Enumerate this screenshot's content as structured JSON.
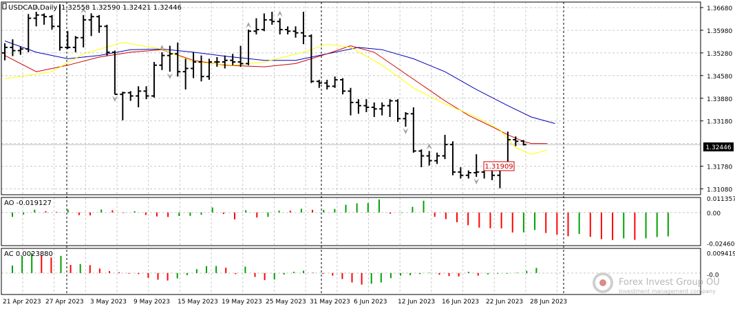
{
  "header": {
    "symbol": "USDCAD,Daily",
    "ohlc": "1.32558 1.32590 1.32421 1.32446"
  },
  "price_labels": {
    "current": "1.32446",
    "annotation": "1.31909"
  },
  "indicators": {
    "ao_label": "AO -0.019127",
    "ac_label": "AC 0.0023880"
  },
  "branding": {
    "name": "Forex Invest Group OU",
    "tagline": "Investment management company"
  },
  "colors": {
    "up": "#00a000",
    "down": "#ff0000",
    "fast_ma": "#ffff00",
    "mid_ma": "#cc0000",
    "slow_ma": "#0000bb",
    "bars": "#000000",
    "fractal": "#a0a0a0"
  },
  "chart_data": [
    {
      "type": "ohlc",
      "title": "USDCAD,Daily",
      "ylim": [
        1.309,
        1.3685
      ],
      "y_ticks": [
        "1.36680",
        "1.35980",
        "1.35280",
        "1.34580",
        "1.33880",
        "1.33180",
        "1.32446",
        "1.31780",
        "1.31080"
      ],
      "x_ticks": [
        "21 Apr 2023",
        "27 Apr 2023",
        "3 May 2023",
        "9 May 2023",
        "15 May 2023",
        "19 May 2023",
        "25 May 2023",
        "31 May 2023",
        "6 Jun 2023",
        "12 Jun 2023",
        "16 Jun 2023",
        "22 Jun 2023",
        "28 Jun 2023"
      ],
      "grid": true,
      "bars": [
        {
          "o": 1.3528,
          "h": 1.3558,
          "l": 1.3505,
          "c": 1.3545
        },
        {
          "o": 1.3545,
          "h": 1.357,
          "l": 1.3518,
          "c": 1.3535
        },
        {
          "o": 1.3535,
          "h": 1.3548,
          "l": 1.3522,
          "c": 1.354
        },
        {
          "o": 1.354,
          "h": 1.3648,
          "l": 1.353,
          "c": 1.3635
        },
        {
          "o": 1.3635,
          "h": 1.3655,
          "l": 1.361,
          "c": 1.3645
        },
        {
          "o": 1.3645,
          "h": 1.365,
          "l": 1.3615,
          "c": 1.364
        },
        {
          "o": 1.364,
          "h": 1.3645,
          "l": 1.36,
          "c": 1.361
        },
        {
          "o": 1.361,
          "h": 1.3678,
          "l": 1.3535,
          "c": 1.3545
        },
        {
          "o": 1.3545,
          "h": 1.3595,
          "l": 1.354,
          "c": 1.3545
        },
        {
          "o": 1.3545,
          "h": 1.358,
          "l": 1.353,
          "c": 1.3575
        },
        {
          "o": 1.3575,
          "h": 1.3645,
          "l": 1.3545,
          "c": 1.363
        },
        {
          "o": 1.363,
          "h": 1.365,
          "l": 1.358,
          "c": 1.364
        },
        {
          "o": 1.364,
          "h": 1.3645,
          "l": 1.359,
          "c": 1.361
        },
        {
          "o": 1.361,
          "h": 1.3615,
          "l": 1.352,
          "c": 1.353
        },
        {
          "o": 1.353,
          "h": 1.3535,
          "l": 1.34,
          "c": 1.34
        },
        {
          "o": 1.34,
          "h": 1.3408,
          "l": 1.332,
          "c": 1.3405
        },
        {
          "o": 1.3405,
          "h": 1.341,
          "l": 1.338,
          "c": 1.3395
        },
        {
          "o": 1.3395,
          "h": 1.3425,
          "l": 1.336,
          "c": 1.341
        },
        {
          "o": 1.341,
          "h": 1.3425,
          "l": 1.3385,
          "c": 1.3395
        },
        {
          "o": 1.3395,
          "h": 1.35,
          "l": 1.339,
          "c": 1.349
        },
        {
          "o": 1.349,
          "h": 1.353,
          "l": 1.3475,
          "c": 1.352
        },
        {
          "o": 1.352,
          "h": 1.355,
          "l": 1.347,
          "c": 1.3525
        },
        {
          "o": 1.3525,
          "h": 1.356,
          "l": 1.3455,
          "c": 1.347
        },
        {
          "o": 1.347,
          "h": 1.351,
          "l": 1.3415,
          "c": 1.348
        },
        {
          "o": 1.348,
          "h": 1.353,
          "l": 1.345,
          "c": 1.35
        },
        {
          "o": 1.35,
          "h": 1.352,
          "l": 1.344,
          "c": 1.3455
        },
        {
          "o": 1.3455,
          "h": 1.351,
          "l": 1.3445,
          "c": 1.35
        },
        {
          "o": 1.35,
          "h": 1.3515,
          "l": 1.3485,
          "c": 1.35
        },
        {
          "o": 1.35,
          "h": 1.352,
          "l": 1.348,
          "c": 1.3505
        },
        {
          "o": 1.3505,
          "h": 1.3525,
          "l": 1.349,
          "c": 1.35
        },
        {
          "o": 1.35,
          "h": 1.355,
          "l": 1.3485,
          "c": 1.3495
        },
        {
          "o": 1.3495,
          "h": 1.36,
          "l": 1.349,
          "c": 1.3595
        },
        {
          "o": 1.3595,
          "h": 1.3635,
          "l": 1.3585,
          "c": 1.36
        },
        {
          "o": 1.36,
          "h": 1.365,
          "l": 1.3595,
          "c": 1.363
        },
        {
          "o": 1.363,
          "h": 1.3655,
          "l": 1.3615,
          "c": 1.3625
        },
        {
          "o": 1.3625,
          "h": 1.3635,
          "l": 1.3585,
          "c": 1.36
        },
        {
          "o": 1.36,
          "h": 1.361,
          "l": 1.3585,
          "c": 1.3595
        },
        {
          "o": 1.3595,
          "h": 1.361,
          "l": 1.3575,
          "c": 1.359
        },
        {
          "o": 1.359,
          "h": 1.3655,
          "l": 1.3555,
          "c": 1.358
        },
        {
          "o": 1.358,
          "h": 1.3585,
          "l": 1.3435,
          "c": 1.344
        },
        {
          "o": 1.344,
          "h": 1.3445,
          "l": 1.342,
          "c": 1.3435
        },
        {
          "o": 1.3435,
          "h": 1.3445,
          "l": 1.3415,
          "c": 1.3425
        },
        {
          "o": 1.3425,
          "h": 1.3455,
          "l": 1.342,
          "c": 1.3445
        },
        {
          "o": 1.3445,
          "h": 1.345,
          "l": 1.34,
          "c": 1.341
        },
        {
          "o": 1.341,
          "h": 1.342,
          "l": 1.3335,
          "c": 1.3375
        },
        {
          "o": 1.3375,
          "h": 1.3385,
          "l": 1.334,
          "c": 1.3365
        },
        {
          "o": 1.3365,
          "h": 1.3385,
          "l": 1.3345,
          "c": 1.336
        },
        {
          "o": 1.336,
          "h": 1.3375,
          "l": 1.333,
          "c": 1.3355
        },
        {
          "o": 1.3355,
          "h": 1.3375,
          "l": 1.3335,
          "c": 1.3365
        },
        {
          "o": 1.3365,
          "h": 1.3385,
          "l": 1.333,
          "c": 1.338
        },
        {
          "o": 1.338,
          "h": 1.3385,
          "l": 1.3315,
          "c": 1.3325
        },
        {
          "o": 1.3325,
          "h": 1.3345,
          "l": 1.33,
          "c": 1.334
        },
        {
          "o": 1.334,
          "h": 1.336,
          "l": 1.322,
          "c": 1.3225
        },
        {
          "o": 1.3225,
          "h": 1.323,
          "l": 1.3175,
          "c": 1.321
        },
        {
          "o": 1.321,
          "h": 1.3225,
          "l": 1.318,
          "c": 1.3195
        },
        {
          "o": 1.3195,
          "h": 1.322,
          "l": 1.3185,
          "c": 1.321
        },
        {
          "o": 1.321,
          "h": 1.3275,
          "l": 1.32,
          "c": 1.3245
        },
        {
          "o": 1.3245,
          "h": 1.3255,
          "l": 1.315,
          "c": 1.316
        },
        {
          "o": 1.316,
          "h": 1.3175,
          "l": 1.314,
          "c": 1.315
        },
        {
          "o": 1.315,
          "h": 1.3165,
          "l": 1.314,
          "c": 1.3158
        },
        {
          "o": 1.3158,
          "h": 1.3215,
          "l": 1.3145,
          "c": 1.316
        },
        {
          "o": 1.316,
          "h": 1.3185,
          "l": 1.314,
          "c": 1.3175
        },
        {
          "o": 1.3175,
          "h": 1.318,
          "l": 1.3135,
          "c": 1.315
        },
        {
          "o": 1.315,
          "h": 1.319,
          "l": 1.311,
          "c": 1.3185
        },
        {
          "o": 1.3185,
          "h": 1.3285,
          "l": 1.318,
          "c": 1.326
        },
        {
          "o": 1.326,
          "h": 1.327,
          "l": 1.324,
          "c": 1.3255
        },
        {
          "o": 1.32558,
          "h": 1.3259,
          "l": 1.32421,
          "c": 1.32446
        }
      ],
      "fast_ma": [
        [
          0,
          1.3448
        ],
        [
          6,
          1.347
        ],
        [
          10,
          1.3525
        ],
        [
          15,
          1.356
        ],
        [
          20,
          1.354
        ],
        [
          24,
          1.35
        ],
        [
          29,
          1.349
        ],
        [
          33,
          1.35
        ],
        [
          38,
          1.353
        ],
        [
          41,
          1.3555
        ],
        [
          44,
          1.3545
        ],
        [
          48,
          1.349
        ],
        [
          52,
          1.342
        ],
        [
          56,
          1.337
        ],
        [
          60,
          1.333
        ],
        [
          63,
          1.329
        ],
        [
          65,
          1.3235
        ],
        [
          67,
          1.3215
        ],
        [
          69,
          1.3228
        ]
      ],
      "mid_ma": [
        [
          0,
          1.352
        ],
        [
          4,
          1.347
        ],
        [
          8,
          1.349
        ],
        [
          12,
          1.3515
        ],
        [
          16,
          1.353
        ],
        [
          20,
          1.3538
        ],
        [
          24,
          1.3505
        ],
        [
          28,
          1.349
        ],
        [
          33,
          1.3485
        ],
        [
          37,
          1.3495
        ],
        [
          41,
          1.3525
        ],
        [
          44,
          1.355
        ],
        [
          47,
          1.353
        ],
        [
          50,
          1.348
        ],
        [
          53,
          1.343
        ],
        [
          56,
          1.338
        ],
        [
          59,
          1.3335
        ],
        [
          62,
          1.33
        ],
        [
          64,
          1.3275
        ],
        [
          66,
          1.3255
        ],
        [
          67,
          1.3248
        ],
        [
          69,
          1.3248
        ]
      ],
      "slow_ma": [
        [
          0,
          1.3565
        ],
        [
          4,
          1.353
        ],
        [
          8,
          1.351
        ],
        [
          12,
          1.352
        ],
        [
          16,
          1.3538
        ],
        [
          20,
          1.354
        ],
        [
          24,
          1.353
        ],
        [
          28,
          1.3518
        ],
        [
          33,
          1.3505
        ],
        [
          37,
          1.3505
        ],
        [
          41,
          1.3525
        ],
        [
          45,
          1.3545
        ],
        [
          48,
          1.3538
        ],
        [
          52,
          1.351
        ],
        [
          56,
          1.347
        ],
        [
          60,
          1.3415
        ],
        [
          64,
          1.3365
        ],
        [
          67,
          1.333
        ],
        [
          70,
          1.331
        ]
      ],
      "fractals_up": [
        4,
        10,
        20,
        31,
        35,
        54
      ],
      "fractals_down": [
        14,
        21,
        51,
        60
      ]
    },
    {
      "type": "histogram",
      "title": "AO -0.019127",
      "ylim": [
        -0.0265,
        0.012
      ],
      "y_ticks": [
        "0.011357",
        "0.00",
        "-0.024604"
      ],
      "values": [
        -0.0035,
        -0.0016,
        0.0022,
        0.001,
        0.0005,
        0.0023,
        -0.0021,
        -0.0023,
        0.0024,
        0.0018,
        -0.0004,
        0.001,
        -0.002,
        -0.0032,
        -0.0036,
        -0.0028,
        -0.0027,
        -0.0018,
        0.004,
        -0.0012,
        -0.0055,
        0.0018,
        -0.004,
        -0.0035,
        0.0015,
        0.0014,
        0.003,
        0.0021,
        0.0021,
        0.0028,
        0.0062,
        0.0073,
        0.0076,
        0.0104,
        -0.001,
        -0.0004,
        0.0045,
        0.0094,
        -0.0034,
        -0.0053,
        -0.0078,
        -0.0102,
        -0.0121,
        -0.0126,
        -0.0127,
        -0.016,
        -0.0159,
        -0.014,
        -0.0164,
        -0.0177,
        -0.019,
        -0.0172,
        -0.0195,
        -0.0213,
        -0.022,
        -0.0207,
        -0.0219,
        -0.0207,
        -0.0196,
        -0.0191
      ]
    },
    {
      "type": "histogram",
      "title": "AC 0.0023880",
      "ylim": [
        -0.01,
        0.0115
      ],
      "y_ticks": [
        "0.0094191",
        "-0.0"
      ],
      "values": [
        0.0035,
        0.008,
        0.0093,
        0.0084,
        0.0072,
        0.008,
        0.0038,
        0.0042,
        0.0037,
        0.0021,
        0.0009,
        0.0004,
        -0.0003,
        -0.0005,
        -0.0022,
        -0.0031,
        -0.0035,
        -0.0025,
        -0.001,
        0.0018,
        0.0032,
        0.0033,
        0.0025,
        -0.0005,
        0.003,
        -0.0018,
        -0.0033,
        -0.003,
        -0.0007,
        0.0006,
        0.0011,
        0.0002,
        -0.0004,
        -0.0012,
        -0.0028,
        -0.0044,
        -0.0054,
        -0.005,
        -0.0044,
        -0.0024,
        -0.0012,
        -0.001,
        -0.0005,
        0.0002,
        -0.0008,
        -0.0014,
        -0.0016,
        0.0006,
        -0.0012,
        -0.0006,
        -0.0003,
        -0.0003,
        0.0002,
        0.001,
        0.0024
      ]
    }
  ]
}
